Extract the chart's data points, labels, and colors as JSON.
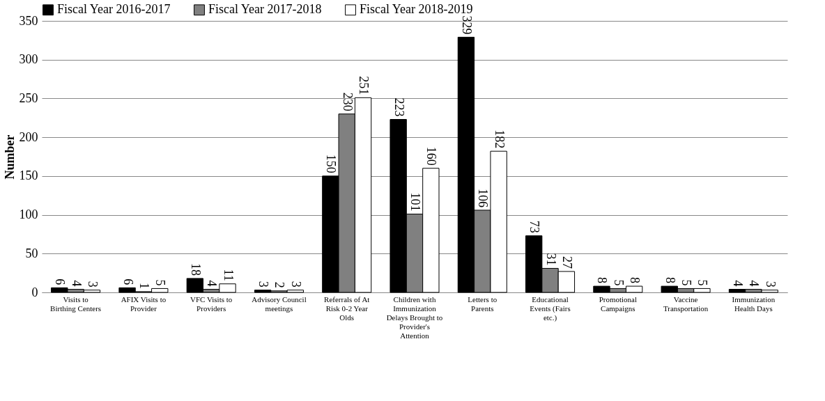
{
  "chart_data": {
    "type": "bar",
    "ylabel": "Number",
    "categories": [
      "Visits to Birthing Centers",
      "AFIX Visits to Provider",
      "VFC Visits to Providers",
      "Advisory Council meetings",
      "Referrals of At Risk 0-2 Year Olds",
      "Children with Immunization Delays Brought to Provider's Attention",
      "Letters to Parents",
      "Educational Events (Fairs etc.)",
      "Promotional Campaigns",
      "Vaccine Transportation",
      "Immunization Health Days"
    ],
    "series": [
      {
        "name": "Fiscal Year 2016-2017",
        "color": "#000000",
        "values": [
          6,
          6,
          18,
          3,
          150,
          223,
          329,
          73,
          8,
          8,
          4
        ]
      },
      {
        "name": "Fiscal Year 2017-2018",
        "color": "#808080",
        "values": [
          4,
          1,
          4,
          2,
          230,
          101,
          106,
          31,
          5,
          5,
          4
        ]
      },
      {
        "name": "Fiscal Year 2018-2019",
        "color": "#ffffff",
        "values": [
          3,
          5,
          11,
          3,
          251,
          160,
          182,
          27,
          8,
          5,
          3
        ]
      }
    ],
    "ylim": [
      0,
      350
    ],
    "yticks": [
      0,
      50,
      100,
      150,
      200,
      250,
      300,
      350
    ],
    "grid": "y",
    "legend": "top",
    "data_labels": true
  }
}
